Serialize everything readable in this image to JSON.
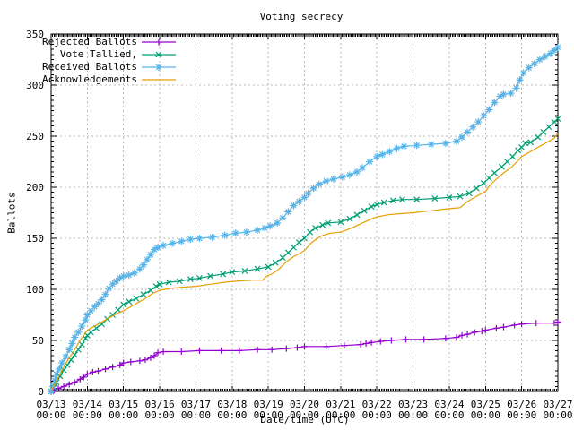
{
  "title": "Voting secrecy",
  "chart_data": {
    "type": "line",
    "title": "Voting secrecy",
    "xlabel": "Date/time (UTC)",
    "ylabel": "Ballots",
    "ylim": [
      0,
      350
    ],
    "y_tick_step": 50,
    "y_ticks": [
      "0",
      "50",
      "100",
      "150",
      "200",
      "250",
      "300",
      "350"
    ],
    "x_span_days": 14,
    "x_ticks": [
      {
        "date": "03/13",
        "time": "00:00"
      },
      {
        "date": "03/14",
        "time": "00:00"
      },
      {
        "date": "03/15",
        "time": "00:00"
      },
      {
        "date": "03/16",
        "time": "00:00"
      },
      {
        "date": "03/17",
        "time": "00:00"
      },
      {
        "date": "03/18",
        "time": "00:00"
      },
      {
        "date": "03/19",
        "time": "00:00"
      },
      {
        "date": "03/20",
        "time": "00:00"
      },
      {
        "date": "03/21",
        "time": "00:00"
      },
      {
        "date": "03/22",
        "time": "00:00"
      },
      {
        "date": "03/23",
        "time": "00:00"
      },
      {
        "date": "03/24",
        "time": "00:00"
      },
      {
        "date": "03/25",
        "time": "00:00"
      },
      {
        "date": "03/26",
        "time": "00:00"
      },
      {
        "date": "03/27",
        "time": "00:00"
      }
    ],
    "grid": true,
    "grid_color": "#b8b8b8",
    "legend_position": "top-left",
    "background": "#ffffff",
    "series": [
      {
        "name": "Rejected Ballots",
        "color": "#9400d3",
        "marker": "plus",
        "points": [
          [
            0,
            0
          ],
          [
            0.08,
            1
          ],
          [
            0.2,
            3
          ],
          [
            0.35,
            5
          ],
          [
            0.5,
            7
          ],
          [
            0.65,
            9
          ],
          [
            0.8,
            12
          ],
          [
            0.9,
            14
          ],
          [
            1.0,
            17
          ],
          [
            1.15,
            19
          ],
          [
            1.3,
            20
          ],
          [
            1.5,
            22
          ],
          [
            1.7,
            24
          ],
          [
            1.9,
            26
          ],
          [
            2.0,
            28
          ],
          [
            2.2,
            29
          ],
          [
            2.45,
            30
          ],
          [
            2.6,
            31
          ],
          [
            2.75,
            33
          ],
          [
            2.85,
            35
          ],
          [
            2.95,
            38
          ],
          [
            3.1,
            39
          ],
          [
            3.6,
            39
          ],
          [
            4.1,
            40
          ],
          [
            4.7,
            40
          ],
          [
            5.2,
            40
          ],
          [
            5.7,
            41
          ],
          [
            6.1,
            41
          ],
          [
            6.5,
            42
          ],
          [
            6.8,
            43
          ],
          [
            7.0,
            44
          ],
          [
            7.6,
            44
          ],
          [
            8.1,
            45
          ],
          [
            8.55,
            46
          ],
          [
            8.7,
            47
          ],
          [
            8.85,
            48
          ],
          [
            9.1,
            49
          ],
          [
            9.4,
            50
          ],
          [
            9.8,
            51
          ],
          [
            10.3,
            51
          ],
          [
            10.9,
            52
          ],
          [
            11.2,
            53
          ],
          [
            11.35,
            55
          ],
          [
            11.5,
            56
          ],
          [
            11.7,
            58
          ],
          [
            11.9,
            59
          ],
          [
            12.0,
            60
          ],
          [
            12.3,
            62
          ],
          [
            12.5,
            63
          ],
          [
            12.8,
            65
          ],
          [
            13.0,
            66
          ],
          [
            13.4,
            67
          ],
          [
            13.9,
            67
          ],
          [
            14.0,
            68
          ]
        ]
      },
      {
        "name": "Vote Tallied,",
        "color": "#009e73",
        "marker": "cross",
        "points": [
          [
            0,
            0
          ],
          [
            0.08,
            4
          ],
          [
            0.15,
            9
          ],
          [
            0.25,
            15
          ],
          [
            0.35,
            21
          ],
          [
            0.45,
            26
          ],
          [
            0.55,
            31
          ],
          [
            0.65,
            36
          ],
          [
            0.75,
            41
          ],
          [
            0.85,
            46
          ],
          [
            0.95,
            52
          ],
          [
            1.0,
            55
          ],
          [
            1.1,
            58
          ],
          [
            1.25,
            62
          ],
          [
            1.4,
            66
          ],
          [
            1.55,
            71
          ],
          [
            1.7,
            75
          ],
          [
            1.85,
            80
          ],
          [
            2.0,
            85
          ],
          [
            2.15,
            88
          ],
          [
            2.35,
            91
          ],
          [
            2.55,
            95
          ],
          [
            2.75,
            99
          ],
          [
            2.9,
            103
          ],
          [
            3.0,
            105
          ],
          [
            3.25,
            107
          ],
          [
            3.55,
            108
          ],
          [
            3.85,
            110
          ],
          [
            4.1,
            111
          ],
          [
            4.4,
            113
          ],
          [
            4.75,
            115
          ],
          [
            5.0,
            117
          ],
          [
            5.35,
            118
          ],
          [
            5.7,
            120
          ],
          [
            6.0,
            122
          ],
          [
            6.2,
            126
          ],
          [
            6.4,
            131
          ],
          [
            6.55,
            136
          ],
          [
            6.7,
            141
          ],
          [
            6.85,
            146
          ],
          [
            7.0,
            150
          ],
          [
            7.15,
            156
          ],
          [
            7.3,
            160
          ],
          [
            7.5,
            163
          ],
          [
            7.65,
            165
          ],
          [
            8.0,
            166
          ],
          [
            8.25,
            169
          ],
          [
            8.45,
            173
          ],
          [
            8.65,
            177
          ],
          [
            8.85,
            181
          ],
          [
            9.0,
            183
          ],
          [
            9.2,
            185
          ],
          [
            9.45,
            187
          ],
          [
            9.7,
            188
          ],
          [
            10.1,
            188
          ],
          [
            10.6,
            189
          ],
          [
            11.0,
            190
          ],
          [
            11.3,
            191
          ],
          [
            11.55,
            194
          ],
          [
            11.75,
            199
          ],
          [
            11.95,
            204
          ],
          [
            12.1,
            209
          ],
          [
            12.25,
            214
          ],
          [
            12.45,
            220
          ],
          [
            12.6,
            225
          ],
          [
            12.75,
            230
          ],
          [
            12.9,
            236
          ],
          [
            13.0,
            239
          ],
          [
            13.1,
            243
          ],
          [
            13.25,
            244
          ],
          [
            13.45,
            249
          ],
          [
            13.6,
            254
          ],
          [
            13.75,
            259
          ],
          [
            13.9,
            264
          ],
          [
            14.0,
            267
          ]
        ]
      },
      {
        "name": "Received Ballots",
        "color": "#56b4e9",
        "marker": "asterisk",
        "points": [
          [
            0,
            0
          ],
          [
            0.05,
            5
          ],
          [
            0.1,
            11
          ],
          [
            0.15,
            17
          ],
          [
            0.22,
            22
          ],
          [
            0.3,
            28
          ],
          [
            0.4,
            34
          ],
          [
            0.5,
            41
          ],
          [
            0.58,
            47
          ],
          [
            0.65,
            53
          ],
          [
            0.75,
            58
          ],
          [
            0.85,
            64
          ],
          [
            0.95,
            70
          ],
          [
            1.0,
            75
          ],
          [
            1.1,
            79
          ],
          [
            1.2,
            83
          ],
          [
            1.3,
            86
          ],
          [
            1.4,
            90
          ],
          [
            1.5,
            95
          ],
          [
            1.6,
            101
          ],
          [
            1.7,
            105
          ],
          [
            1.8,
            108
          ],
          [
            1.9,
            111
          ],
          [
            2.0,
            113
          ],
          [
            2.15,
            114
          ],
          [
            2.3,
            116
          ],
          [
            2.45,
            120
          ],
          [
            2.55,
            124
          ],
          [
            2.65,
            129
          ],
          [
            2.75,
            134
          ],
          [
            2.85,
            139
          ],
          [
            2.95,
            141
          ],
          [
            3.1,
            143
          ],
          [
            3.35,
            145
          ],
          [
            3.6,
            147
          ],
          [
            3.85,
            149
          ],
          [
            4.1,
            150
          ],
          [
            4.45,
            151
          ],
          [
            4.8,
            153
          ],
          [
            5.1,
            155
          ],
          [
            5.4,
            156
          ],
          [
            5.7,
            158
          ],
          [
            5.9,
            160
          ],
          [
            6.05,
            162
          ],
          [
            6.25,
            165
          ],
          [
            6.4,
            170
          ],
          [
            6.55,
            176
          ],
          [
            6.7,
            182
          ],
          [
            6.85,
            186
          ],
          [
            7.0,
            190
          ],
          [
            7.1,
            194
          ],
          [
            7.25,
            199
          ],
          [
            7.4,
            203
          ],
          [
            7.6,
            206
          ],
          [
            7.8,
            208
          ],
          [
            8.05,
            210
          ],
          [
            8.25,
            212
          ],
          [
            8.45,
            215
          ],
          [
            8.6,
            219
          ],
          [
            8.8,
            225
          ],
          [
            9.0,
            230
          ],
          [
            9.15,
            232
          ],
          [
            9.35,
            235
          ],
          [
            9.55,
            238
          ],
          [
            9.75,
            240
          ],
          [
            10.1,
            241
          ],
          [
            10.5,
            242
          ],
          [
            10.9,
            243
          ],
          [
            11.2,
            245
          ],
          [
            11.35,
            249
          ],
          [
            11.5,
            254
          ],
          [
            11.65,
            259
          ],
          [
            11.8,
            264
          ],
          [
            11.95,
            270
          ],
          [
            12.1,
            276
          ],
          [
            12.25,
            283
          ],
          [
            12.4,
            289
          ],
          [
            12.5,
            291
          ],
          [
            12.7,
            292
          ],
          [
            12.85,
            297
          ],
          [
            12.95,
            305
          ],
          [
            13.05,
            312
          ],
          [
            13.2,
            317
          ],
          [
            13.35,
            321
          ],
          [
            13.5,
            325
          ],
          [
            13.65,
            328
          ],
          [
            13.8,
            331
          ],
          [
            13.9,
            334
          ],
          [
            14.0,
            337
          ]
        ]
      },
      {
        "name": "Acknowledgements",
        "color": "#e69f00",
        "marker": "none",
        "points": [
          [
            0,
            0
          ],
          [
            0.1,
            7
          ],
          [
            0.2,
            14
          ],
          [
            0.3,
            21
          ],
          [
            0.4,
            27
          ],
          [
            0.5,
            33
          ],
          [
            0.6,
            38
          ],
          [
            0.7,
            44
          ],
          [
            0.8,
            50
          ],
          [
            0.9,
            55
          ],
          [
            1.0,
            60
          ],
          [
            1.15,
            63
          ],
          [
            1.3,
            66
          ],
          [
            1.5,
            70
          ],
          [
            1.7,
            74
          ],
          [
            1.85,
            77
          ],
          [
            2.0,
            79
          ],
          [
            2.2,
            83
          ],
          [
            2.4,
            87
          ],
          [
            2.6,
            91
          ],
          [
            2.8,
            96
          ],
          [
            3.0,
            99
          ],
          [
            3.3,
            101
          ],
          [
            3.6,
            102
          ],
          [
            4.0,
            103
          ],
          [
            4.4,
            105
          ],
          [
            4.8,
            107
          ],
          [
            5.1,
            108
          ],
          [
            5.6,
            109
          ],
          [
            5.85,
            109
          ],
          [
            5.95,
            113
          ],
          [
            6.1,
            115
          ],
          [
            6.3,
            120
          ],
          [
            6.5,
            127
          ],
          [
            6.7,
            132
          ],
          [
            6.9,
            136
          ],
          [
            7.0,
            138
          ],
          [
            7.2,
            146
          ],
          [
            7.45,
            152
          ],
          [
            7.7,
            155
          ],
          [
            8.0,
            156
          ],
          [
            8.3,
            160
          ],
          [
            8.6,
            165
          ],
          [
            8.85,
            169
          ],
          [
            9.0,
            171
          ],
          [
            9.3,
            173
          ],
          [
            9.6,
            174
          ],
          [
            10.0,
            175
          ],
          [
            10.5,
            177
          ],
          [
            11.0,
            179
          ],
          [
            11.3,
            180
          ],
          [
            11.5,
            186
          ],
          [
            11.7,
            190
          ],
          [
            11.9,
            194
          ],
          [
            12.0,
            196
          ],
          [
            12.15,
            203
          ],
          [
            12.3,
            208
          ],
          [
            12.5,
            214
          ],
          [
            12.7,
            219
          ],
          [
            12.9,
            226
          ],
          [
            13.0,
            230
          ],
          [
            13.2,
            234
          ],
          [
            13.5,
            240
          ],
          [
            13.7,
            244
          ],
          [
            13.9,
            248
          ],
          [
            13.97,
            252
          ],
          [
            14.0,
            252
          ]
        ]
      }
    ]
  }
}
